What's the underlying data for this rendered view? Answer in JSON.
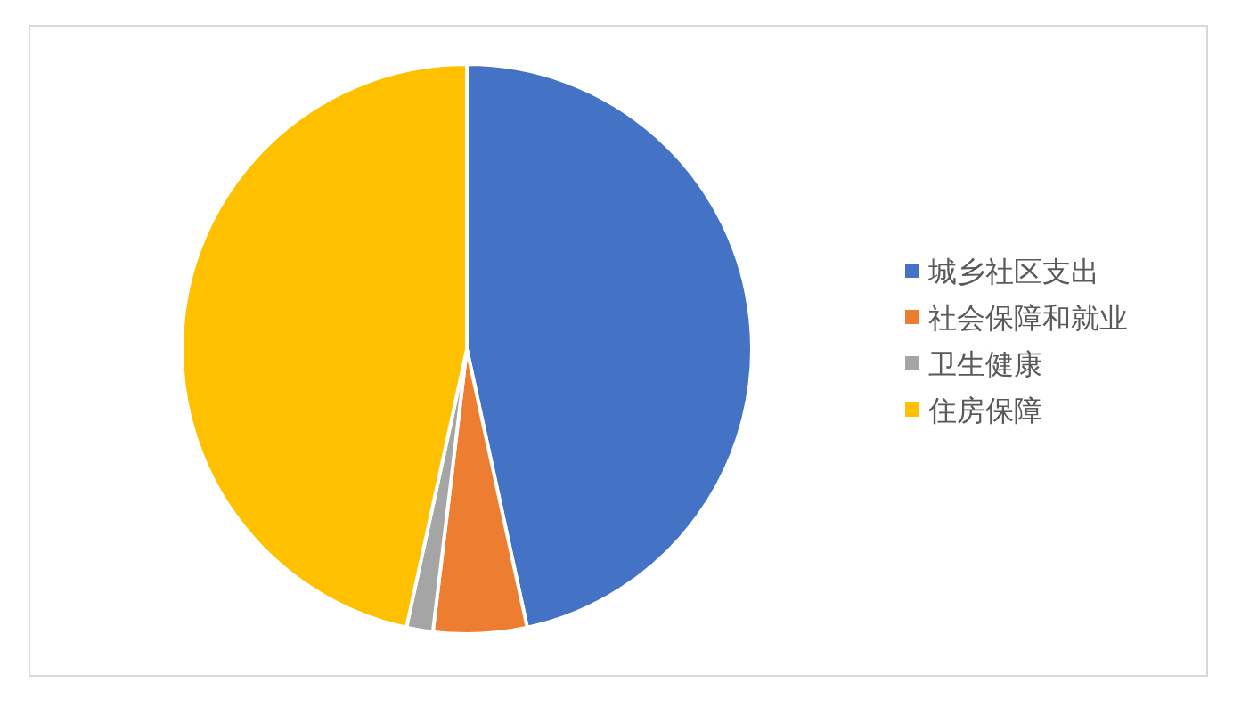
{
  "chart_data": {
    "type": "pie",
    "categories": [
      "城乡社区支出",
      "社会保障和就业",
      "卫生健康",
      "住房保障"
    ],
    "values": [
      46.6,
      5.3,
      1.5,
      46.6
    ],
    "colors": [
      "#4472c4",
      "#ed7d31",
      "#a5a5a5",
      "#ffc000"
    ],
    "legend": "right"
  }
}
